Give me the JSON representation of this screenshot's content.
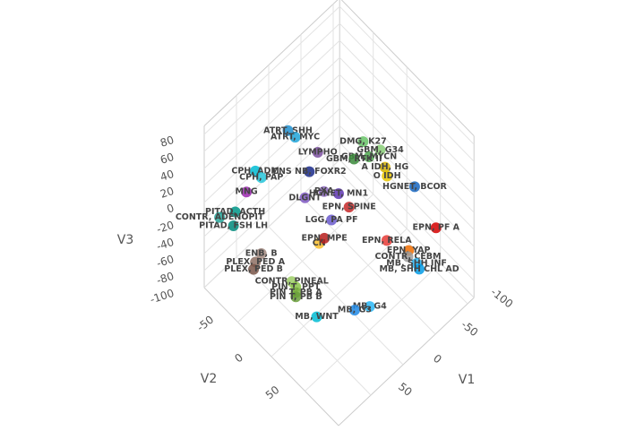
{
  "chart_data": {
    "type": "scatter3d",
    "xlabel": "V1",
    "ylabel": "V2",
    "zlabel": "V3",
    "xlim": [
      -110,
      100
    ],
    "ylim": [
      -100,
      100
    ],
    "zlim": [
      -100,
      90
    ],
    "xticks": [
      -100,
      -50,
      0,
      50
    ],
    "yticks": [
      -50,
      0,
      50
    ],
    "zticks": [
      -100,
      -80,
      -60,
      -40,
      -20,
      0,
      20,
      40,
      60,
      80
    ],
    "grid": true,
    "points": [
      {
        "label": "ATRT, SHH",
        "color": "#1f8fd0",
        "x": 16,
        "y": -56,
        "z": 60
      },
      {
        "label": "ATRT, MYC",
        "color": "#1fa4d9",
        "x": 10,
        "y": -51,
        "z": 52
      },
      {
        "label": "DMG, K27",
        "color": "#66c266",
        "x": -36,
        "y": 6,
        "z": 60
      },
      {
        "label": "GBM, G34",
        "color": "#88cc77",
        "x": -50,
        "y": 18,
        "z": 50
      },
      {
        "label": "GBM, MYCN",
        "color": "#4fa84f",
        "x": -39,
        "y": 12,
        "z": 45
      },
      {
        "label": "GBM, RTK II",
        "color": "#3a8a3a",
        "x": -25,
        "y": 3,
        "z": 45
      },
      {
        "label": "A IDH, HG",
        "color": "#d4b000",
        "x": -47,
        "y": 28,
        "z": 40
      },
      {
        "label": "O IDH",
        "color": "#e8c400",
        "x": -45,
        "y": 33,
        "z": 35
      },
      {
        "label": "LYMPHO",
        "color": "#7b4fa0",
        "x": -1,
        "y": -28,
        "z": 45
      },
      {
        "label": "CPH, ADM",
        "color": "#00bcd4",
        "x": 54,
        "y": -68,
        "z": 30
      },
      {
        "label": "CPH, PAP",
        "color": "#26c6da",
        "x": 51,
        "y": -62,
        "z": 25
      },
      {
        "label": "CNS NB, FOXR2",
        "color": "#1a2a8a",
        "x": 11,
        "y": -29,
        "z": 30
      },
      {
        "label": "PXA",
        "color": "#8e6bbf",
        "x": 8,
        "y": -10,
        "z": 20
      },
      {
        "label": "HGNET, MN1",
        "color": "#5e35b1",
        "x": -2,
        "y": 2,
        "z": 20
      },
      {
        "label": "HGNET, BCOR",
        "color": "#1565c0",
        "x": -69,
        "y": 51,
        "z": 20
      },
      {
        "label": "EPN, PF A",
        "color": "#d50000",
        "x": -74,
        "y": 78,
        "z": -10
      },
      {
        "label": "EPN, RELA",
        "color": "#e53935",
        "x": -31,
        "y": 46,
        "z": -20
      },
      {
        "label": "EPN, YAP",
        "color": "#ef6c00",
        "x": -44,
        "y": 66,
        "z": -25
      },
      {
        "label": "CONTR, CEBM",
        "color": "#9e9e9e",
        "x": -42,
        "y": 67,
        "z": -30
      },
      {
        "label": "MB, SHH INF",
        "color": "#29b6f6",
        "x": -47,
        "y": 75,
        "z": -35
      },
      {
        "label": "MB, SHH CHL AD",
        "color": "#039be5",
        "x": -48,
        "y": 78,
        "z": -40
      },
      {
        "label": "MB, G4",
        "color": "#29b6f6",
        "x": 8,
        "y": 58,
        "z": -60
      },
      {
        "label": "MB, G3",
        "color": "#1e88e5",
        "x": 23,
        "y": 50,
        "z": -60
      },
      {
        "label": "MB, WNT",
        "color": "#00bcd4",
        "x": 59,
        "y": 28,
        "z": -60
      },
      {
        "label": "CONTR, PINEAL",
        "color": "#9ccc65",
        "x": 58,
        "y": -10,
        "z": -50
      },
      {
        "label": "PIN T, PPT",
        "color": "#8bc34a",
        "x": 59,
        "y": -3,
        "z": -50
      },
      {
        "label": "PIN T, PB A",
        "color": "#7cb342",
        "x": 60,
        "y": -2,
        "z": -55
      },
      {
        "label": "PIN T, PB B",
        "color": "#689f38",
        "x": 60,
        "y": -2,
        "z": -60
      },
      {
        "label": "ENB, B",
        "color": "#a1887f",
        "x": 74,
        "y": -40,
        "z": -30
      },
      {
        "label": "PLEX, PED A",
        "color": "#8d6e63",
        "x": 82,
        "y": -41,
        "z": -35
      },
      {
        "label": "PLEX, PED B",
        "color": "#795548",
        "x": 86,
        "y": -40,
        "z": -40
      },
      {
        "label": "PITAD, ACTH",
        "color": "#009688",
        "x": 79,
        "y": -74,
        "z": -5
      },
      {
        "label": "PITAD, FSH LH",
        "color": "#00897b",
        "x": 88,
        "y": -68,
        "z": -10
      },
      {
        "label": "MNG",
        "color": "#9c27b0",
        "x": 71,
        "y": -65,
        "z": 20
      },
      {
        "label": "CN",
        "color": "#fbc02d",
        "x": 26,
        "y": 0,
        "z": -20
      },
      {
        "label": "EPN, MPE",
        "color": "#b71c1c",
        "x": 21,
        "y": 3,
        "z": -15
      },
      {
        "label": "EPN, SPINE",
        "color": "#c62828",
        "x": -10,
        "y": 10,
        "z": 5
      },
      {
        "label": "LGG, PA PF",
        "color": "#6a5acd",
        "x": 11,
        "y": 4,
        "z": 0
      },
      {
        "label": "DLGNT",
        "color": "#7e57c2",
        "x": 25,
        "y": -22,
        "z": 15
      },
      {
        "label": "CONTR, ADENOPIT",
        "color": "#26a69a",
        "x": 96,
        "y": -81,
        "z": -5
      }
    ]
  }
}
